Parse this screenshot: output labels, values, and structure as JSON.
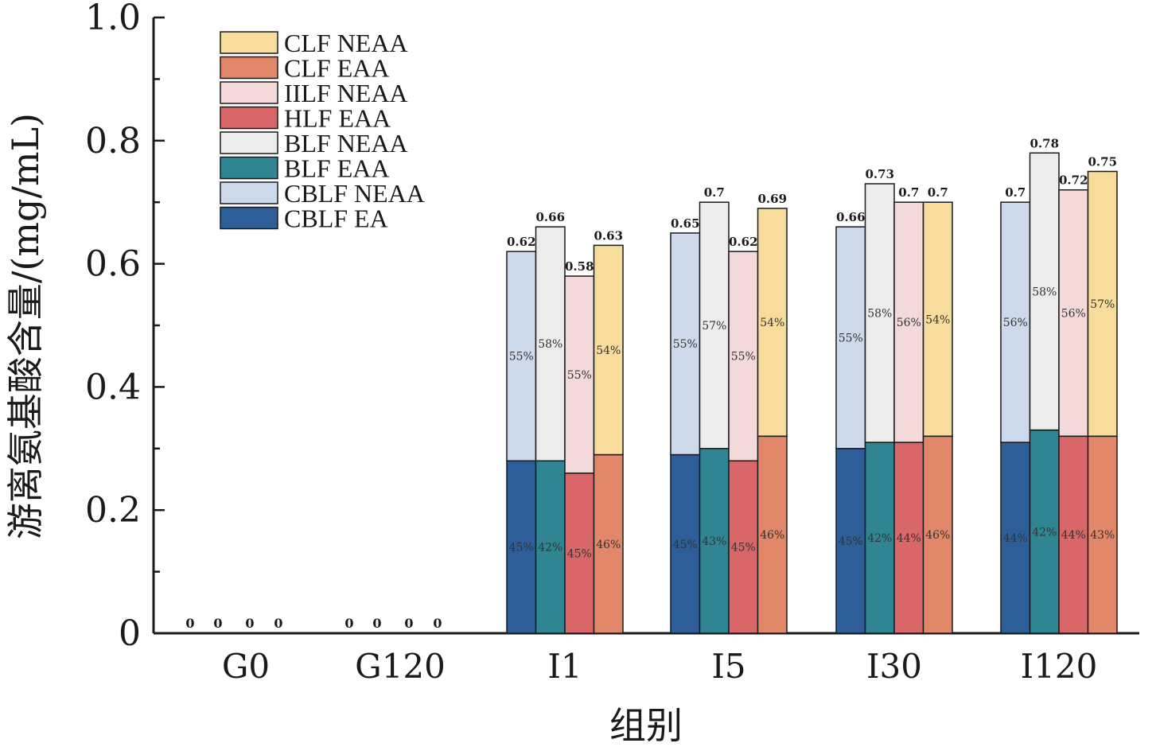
{
  "chart_data": {
    "type": "bar",
    "stacked": true,
    "title": "",
    "xlabel": "组别",
    "ylabel": "游离氨基酸含量/(mg/mL)",
    "ylim": [
      0,
      1.0
    ],
    "yticks": [
      "0",
      "0.2",
      "0.4",
      "0.6",
      "0.8",
      "1.0"
    ],
    "categories": [
      "G0",
      "G120",
      "I1",
      "I5",
      "I30",
      "I120"
    ],
    "legend_position": "top-left",
    "colors": {
      "CLF NEAA": "#f7dc9c",
      "CLF EAA": "#e3876a",
      "HLF NEAA": "#f3d9da",
      "HLF EAA": "#d9676a",
      "BLF NEAA": "#ececec",
      "BLF EAA": "#2f8591",
      "CBLF NEAA": "#cfd9ec",
      "CBLF EA": "#2d5e9a"
    },
    "legend": [
      "CLF NEAA",
      "CLF EAA",
      "IILF NEAA",
      "HLF EAA",
      "BLF NEAA",
      "BLF EAA",
      "CBLF NEAA",
      "CBLF EA"
    ],
    "groups": [
      {
        "category": "G0",
        "bars": [
          {
            "series": "CBLF",
            "eaa": 0,
            "neaa": 0,
            "total": "0",
            "eaa_pct": "",
            "neaa_pct": ""
          },
          {
            "series": "BLF",
            "eaa": 0,
            "neaa": 0,
            "total": "0",
            "eaa_pct": "",
            "neaa_pct": ""
          },
          {
            "series": "HLF",
            "eaa": 0,
            "neaa": 0,
            "total": "0",
            "eaa_pct": "",
            "neaa_pct": ""
          },
          {
            "series": "CLF",
            "eaa": 0,
            "neaa": 0,
            "total": "0",
            "eaa_pct": "",
            "neaa_pct": ""
          }
        ]
      },
      {
        "category": "G120",
        "bars": [
          {
            "series": "CBLF",
            "eaa": 0,
            "neaa": 0,
            "total": "0",
            "eaa_pct": "",
            "neaa_pct": ""
          },
          {
            "series": "BLF",
            "eaa": 0,
            "neaa": 0,
            "total": "0",
            "eaa_pct": "",
            "neaa_pct": ""
          },
          {
            "series": "HLF",
            "eaa": 0,
            "neaa": 0,
            "total": "0",
            "eaa_pct": "",
            "neaa_pct": ""
          },
          {
            "series": "CLF",
            "eaa": 0,
            "neaa": 0,
            "total": "0",
            "eaa_pct": "",
            "neaa_pct": ""
          }
        ]
      },
      {
        "category": "I1",
        "bars": [
          {
            "series": "CBLF",
            "eaa": 0.28,
            "neaa": 0.34,
            "total": "0.62",
            "eaa_pct": "45%",
            "neaa_pct": "55%"
          },
          {
            "series": "BLF",
            "eaa": 0.28,
            "neaa": 0.38,
            "total": "0.66",
            "eaa_pct": "42%",
            "neaa_pct": "58%"
          },
          {
            "series": "HLF",
            "eaa": 0.26,
            "neaa": 0.32,
            "total": "0.58",
            "eaa_pct": "45%",
            "neaa_pct": "55%"
          },
          {
            "series": "CLF",
            "eaa": 0.29,
            "neaa": 0.34,
            "total": "0.63",
            "eaa_pct": "46%",
            "neaa_pct": "54%"
          }
        ]
      },
      {
        "category": "I5",
        "bars": [
          {
            "series": "CBLF",
            "eaa": 0.29,
            "neaa": 0.36,
            "total": "0.65",
            "eaa_pct": "45%",
            "neaa_pct": "55%"
          },
          {
            "series": "BLF",
            "eaa": 0.3,
            "neaa": 0.4,
            "total": "0.7",
            "eaa_pct": "43%",
            "neaa_pct": "57%"
          },
          {
            "series": "HLF",
            "eaa": 0.28,
            "neaa": 0.34,
            "total": "0.62",
            "eaa_pct": "45%",
            "neaa_pct": "55%"
          },
          {
            "series": "CLF",
            "eaa": 0.32,
            "neaa": 0.37,
            "total": "0.69",
            "eaa_pct": "46%",
            "neaa_pct": "54%"
          }
        ]
      },
      {
        "category": "I30",
        "bars": [
          {
            "series": "CBLF",
            "eaa": 0.3,
            "neaa": 0.36,
            "total": "0.66",
            "eaa_pct": "45%",
            "neaa_pct": "55%"
          },
          {
            "series": "BLF",
            "eaa": 0.31,
            "neaa": 0.42,
            "total": "0.73",
            "eaa_pct": "42%",
            "neaa_pct": "58%"
          },
          {
            "series": "HLF",
            "eaa": 0.31,
            "neaa": 0.39,
            "total": "0.7",
            "eaa_pct": "44%",
            "neaa_pct": "56%"
          },
          {
            "series": "CLF",
            "eaa": 0.32,
            "neaa": 0.38,
            "total": "0.7",
            "eaa_pct": "46%",
            "neaa_pct": "54%"
          }
        ]
      },
      {
        "category": "I120",
        "bars": [
          {
            "series": "CBLF",
            "eaa": 0.31,
            "neaa": 0.39,
            "total": "0.7",
            "eaa_pct": "44%",
            "neaa_pct": "56%"
          },
          {
            "series": "BLF",
            "eaa": 0.33,
            "neaa": 0.45,
            "total": "0.78",
            "eaa_pct": "42%",
            "neaa_pct": "58%"
          },
          {
            "series": "HLF",
            "eaa": 0.32,
            "neaa": 0.4,
            "total": "0.72",
            "eaa_pct": "44%",
            "neaa_pct": "56%"
          },
          {
            "series": "CLF",
            "eaa": 0.32,
            "neaa": 0.43,
            "total": "0.75",
            "eaa_pct": "43%",
            "neaa_pct": "57%"
          }
        ]
      }
    ]
  }
}
